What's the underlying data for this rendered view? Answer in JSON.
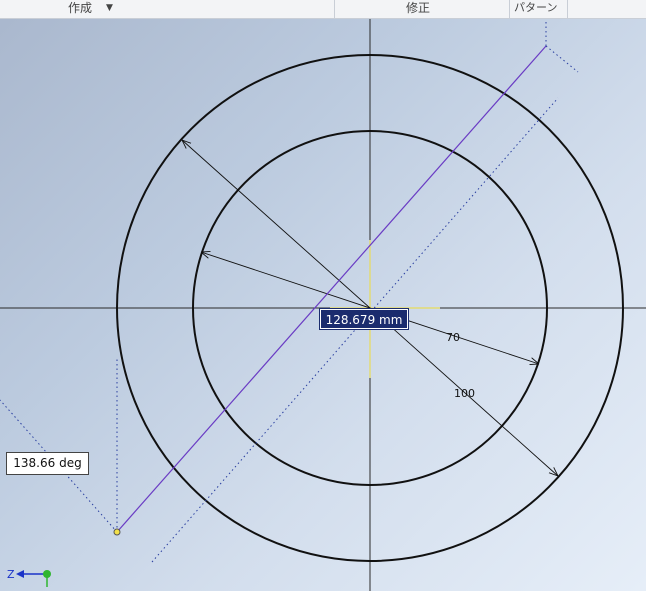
{
  "ribbon": {
    "create_label": "作成",
    "create_dropdown_icon": "dropdown-triangle",
    "modify_label": "修正",
    "pattern_label": "パターン"
  },
  "sketch": {
    "dimension_outer": "100",
    "dimension_inner": "70",
    "length_input": "128.679 mm",
    "angle_input": "138.66 deg",
    "point_color": "#f2e04a",
    "construction_line_color": "#6a3cc4",
    "geometry_color": "#111111"
  },
  "view_triad": {
    "z_label": "Z",
    "y_axis_color": "#2fb62f",
    "z_axis_color": "#1a33c8"
  }
}
